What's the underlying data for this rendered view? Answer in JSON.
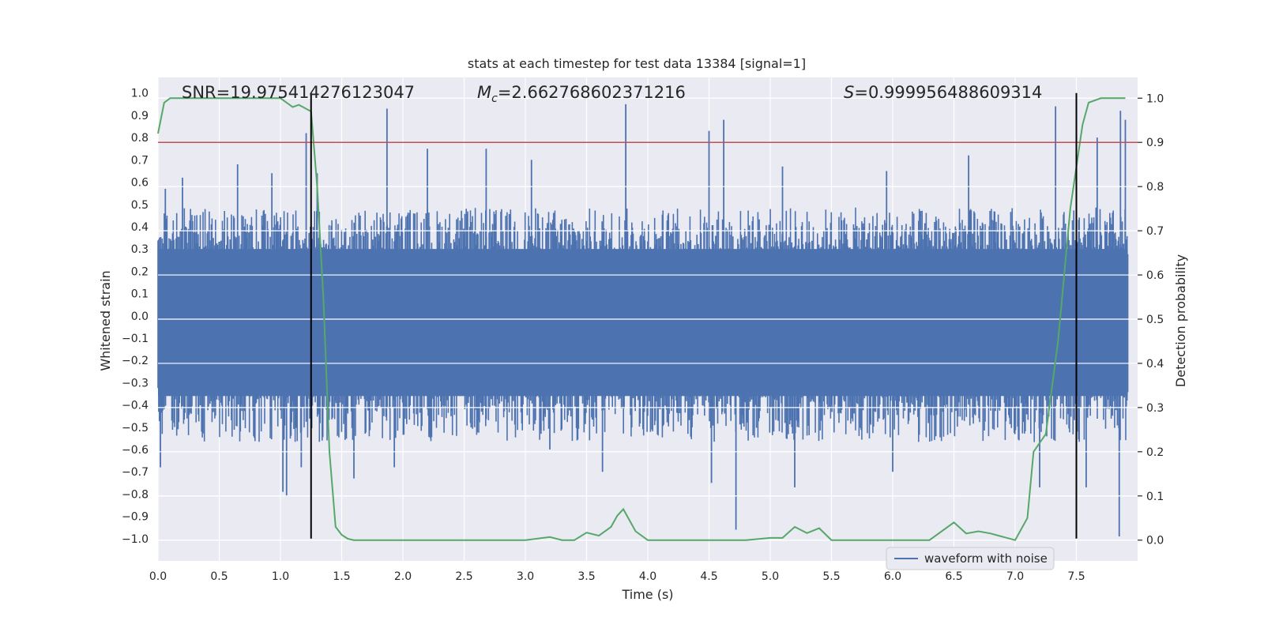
{
  "chart_data": {
    "type": "line",
    "title": "stats at each timestep for test data 13384 [signal=1]",
    "xlabel": "Time (s)",
    "ylabel": "Whitened strain",
    "ylabel_right": "Detection probability",
    "xlim": [
      0,
      8
    ],
    "ylim": [
      -1.1,
      1.07
    ],
    "ylim_right": [
      -0.047,
      1.047
    ],
    "x_ticks": [
      0.0,
      0.5,
      1.0,
      1.5,
      2.0,
      2.5,
      3.0,
      3.5,
      4.0,
      4.5,
      5.0,
      5.5,
      6.0,
      6.5,
      7.0,
      7.5
    ],
    "x_tick_labels": [
      "0.0",
      "0.5",
      "1.0",
      "1.5",
      "2.0",
      "2.5",
      "3.0",
      "3.5",
      "4.0",
      "4.5",
      "5.0",
      "5.5",
      "6.0",
      "6.5",
      "7.0",
      "7.5"
    ],
    "y_ticks": [
      1.0,
      0.9,
      0.8,
      0.7,
      0.6,
      0.5,
      0.4,
      0.3,
      0.2,
      0.1,
      0.0,
      -0.1,
      -0.2,
      -0.3,
      -0.4,
      -0.5,
      -0.6,
      -0.7,
      -0.8,
      -0.9,
      -1.0
    ],
    "y_tick_labels": [
      "1.0",
      "0.9",
      "0.8",
      "0.7",
      "0.6",
      "0.5",
      "0.4",
      "0.3",
      "0.2",
      "0.1",
      "0.0",
      "−0.1",
      "−0.2",
      "−0.3",
      "−0.4",
      "−0.5",
      "−0.6",
      "−0.7",
      "−0.8",
      "−0.9",
      "−1.0"
    ],
    "y_right_ticks": [
      1.0,
      0.9,
      0.8,
      0.7,
      0.6,
      0.5,
      0.4,
      0.3,
      0.2,
      0.1,
      0.0
    ],
    "y_right_tick_labels": [
      "1.0",
      "0.9",
      "0.8",
      "0.7",
      "0.6",
      "0.5",
      "0.4",
      "0.3",
      "0.2",
      "0.1",
      "0.0"
    ],
    "annotations": {
      "snr": "SNR=19.975414276123047",
      "mc_symbol": "M",
      "mc_sub": "c",
      "mc_value": "=2.662768602371216",
      "s_symbol": "S",
      "s_value": "=0.999956488609314"
    },
    "legend": {
      "label": "waveform with noise",
      "placement": "lower-right"
    },
    "colors": {
      "waveform": "#4c72b0",
      "probability": "#55a868",
      "threshold": "#c44e52",
      "markers": "#000000",
      "background": "#eaeaf2",
      "grid": "#ffffff"
    },
    "waveform_envelope": {
      "upper_typical": 0.36,
      "lower_typical": -0.42,
      "peaks": [
        {
          "x": 0.06,
          "y": 0.57
        },
        {
          "x": 0.2,
          "y": 0.62
        },
        {
          "x": 0.65,
          "y": 0.68
        },
        {
          "x": 0.93,
          "y": 0.64
        },
        {
          "x": 1.21,
          "y": 0.82
        },
        {
          "x": 1.3,
          "y": 0.64
        },
        {
          "x": 1.87,
          "y": 0.93
        },
        {
          "x": 2.2,
          "y": 0.75
        },
        {
          "x": 2.68,
          "y": 0.75
        },
        {
          "x": 3.05,
          "y": 0.7
        },
        {
          "x": 3.82,
          "y": 0.95
        },
        {
          "x": 4.5,
          "y": 0.83
        },
        {
          "x": 4.62,
          "y": 0.88
        },
        {
          "x": 5.1,
          "y": 0.67
        },
        {
          "x": 5.95,
          "y": 0.65
        },
        {
          "x": 6.62,
          "y": 0.72
        },
        {
          "x": 7.33,
          "y": 0.94
        },
        {
          "x": 7.67,
          "y": 0.8
        },
        {
          "x": 7.86,
          "y": 0.92
        },
        {
          "x": 7.9,
          "y": 0.88
        }
      ],
      "troughs": [
        {
          "x": 0.02,
          "y": -0.68
        },
        {
          "x": 1.02,
          "y": -0.79
        },
        {
          "x": 1.05,
          "y": -0.81
        },
        {
          "x": 1.17,
          "y": -0.68
        },
        {
          "x": 1.6,
          "y": -0.73
        },
        {
          "x": 1.93,
          "y": -0.68
        },
        {
          "x": 3.2,
          "y": -0.6
        },
        {
          "x": 3.63,
          "y": -0.7
        },
        {
          "x": 4.52,
          "y": -0.75
        },
        {
          "x": 4.72,
          "y": -0.96
        },
        {
          "x": 5.2,
          "y": -0.77
        },
        {
          "x": 6.0,
          "y": -0.7
        },
        {
          "x": 7.2,
          "y": -0.77
        },
        {
          "x": 7.58,
          "y": -0.77
        },
        {
          "x": 7.85,
          "y": -0.99
        }
      ]
    },
    "series": [
      {
        "name": "waveform with noise",
        "kind": "noise-envelope"
      },
      {
        "kind": "probability",
        "axis": "right",
        "x": [
          0.0,
          0.05,
          0.1,
          0.2,
          0.3,
          0.5,
          0.7,
          1.0,
          1.1,
          1.15,
          1.25,
          1.3,
          1.35,
          1.4,
          1.45,
          1.5,
          1.55,
          1.6,
          1.7,
          2.0,
          2.5,
          3.0,
          3.2,
          3.3,
          3.4,
          3.5,
          3.6,
          3.7,
          3.75,
          3.8,
          3.85,
          3.9,
          4.0,
          4.1,
          4.5,
          4.8,
          5.0,
          5.1,
          5.2,
          5.3,
          5.4,
          5.5,
          5.6,
          6.0,
          6.3,
          6.5,
          6.6,
          6.7,
          6.8,
          7.0,
          7.1,
          7.15,
          7.25,
          7.35,
          7.45,
          7.55,
          7.6,
          7.7,
          7.8,
          7.9
        ],
        "y": [
          0.92,
          0.99,
          1.0,
          1.0,
          1.0,
          1.0,
          1.0,
          1.0,
          0.98,
          0.985,
          0.97,
          0.8,
          0.55,
          0.2,
          0.03,
          0.012,
          0.003,
          0.0,
          0.0,
          0.0,
          0.0,
          0.0,
          0.007,
          0.0,
          0.0,
          0.017,
          0.01,
          0.03,
          0.055,
          0.07,
          0.045,
          0.02,
          0.0,
          0.0,
          0.0,
          0.0,
          0.005,
          0.005,
          0.03,
          0.016,
          0.027,
          0.0,
          0.0,
          0.0,
          0.0,
          0.04,
          0.015,
          0.02,
          0.015,
          0.0,
          0.05,
          0.2,
          0.24,
          0.45,
          0.75,
          0.94,
          0.99,
          1.0,
          1.0,
          1.0
        ]
      }
    ],
    "hlines": [
      {
        "axis": "right",
        "y": 0.9
      }
    ],
    "vlines": [
      {
        "x": 1.25,
        "ymin": -1.0,
        "ymax": 1.0
      },
      {
        "x": 7.5,
        "ymin": -1.0,
        "ymax": 1.0
      }
    ],
    "grid": true
  }
}
